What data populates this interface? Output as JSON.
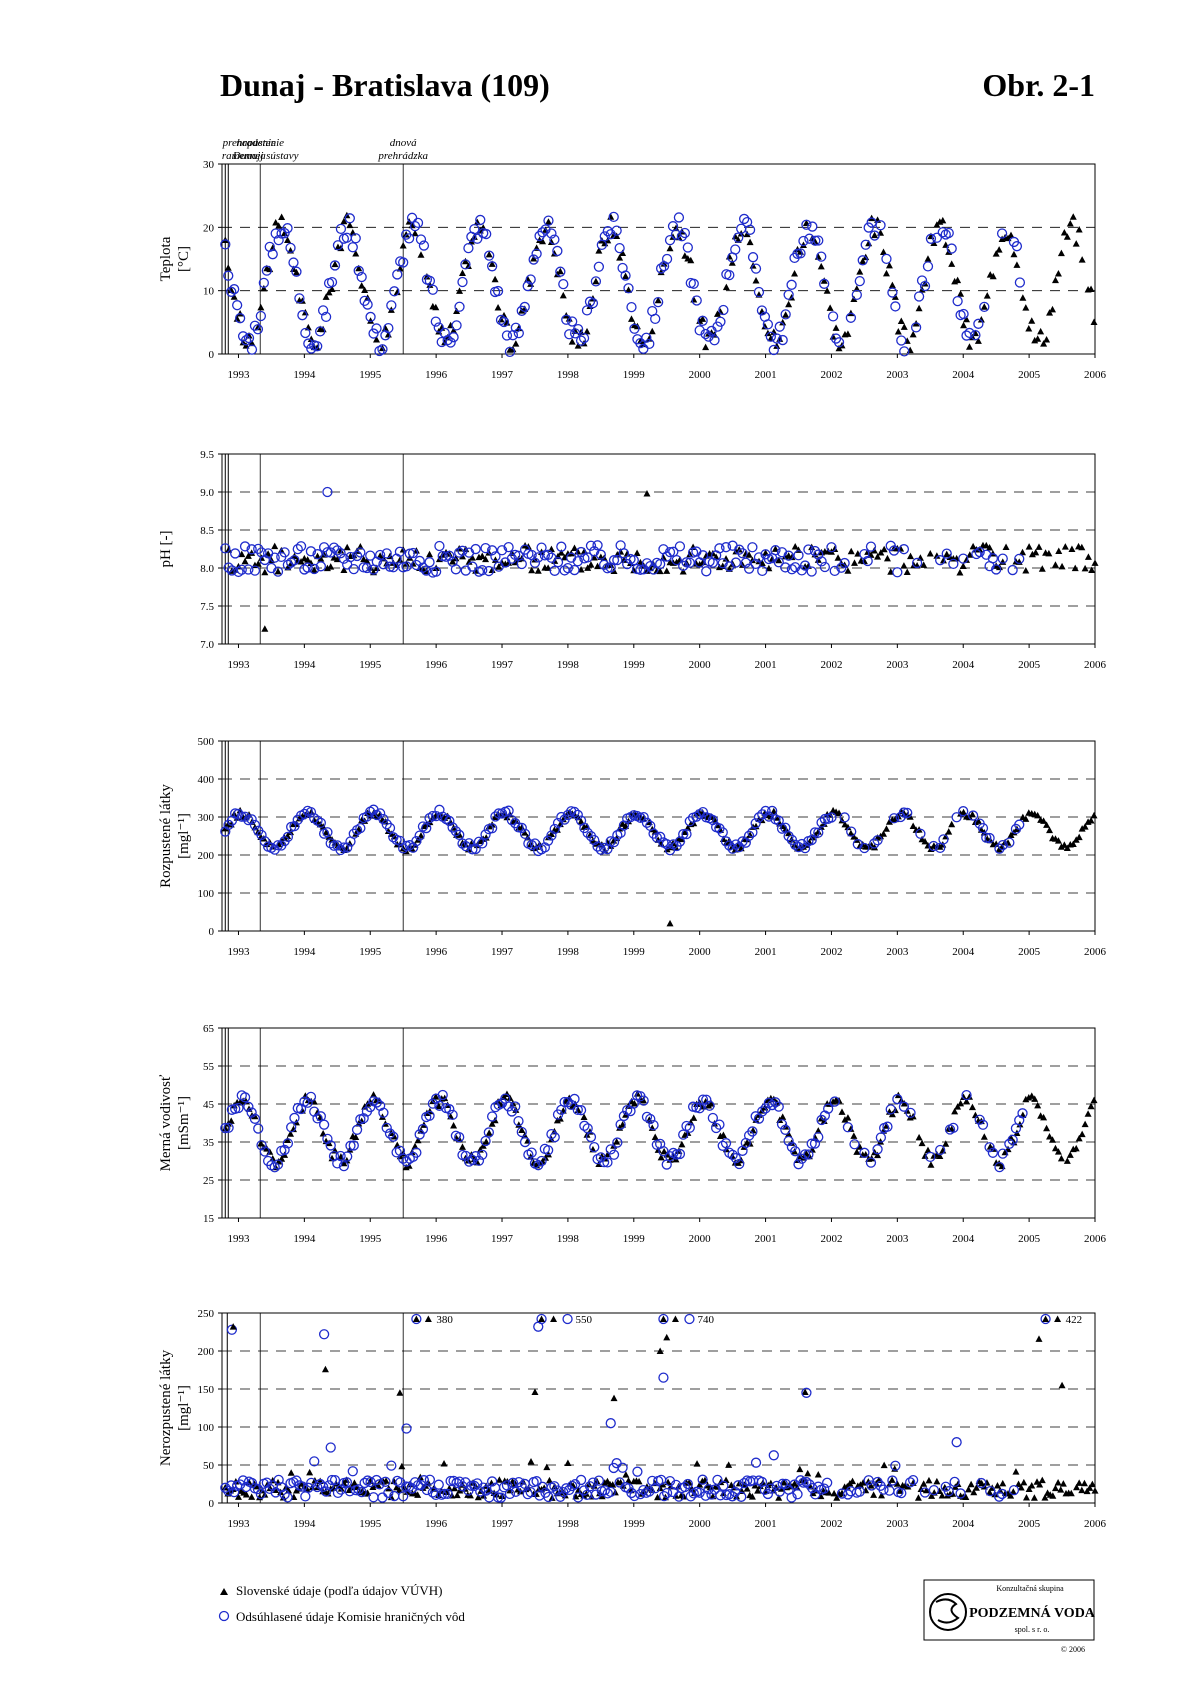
{
  "header": {
    "title": "Dunaj - Bratislava (109)",
    "figure_no": "Obr. 2-1"
  },
  "events": [
    {
      "x": 1992.83,
      "label1": "prehradenie",
      "label2": "Dunaja"
    },
    {
      "x": 1993.33,
      "label1": "napustenie",
      "label2": "ramennej sústavy"
    },
    {
      "x": 1995.5,
      "label1": "dnová",
      "label2": "prehrádzka"
    }
  ],
  "colors": {
    "slovak": "#000000",
    "commission": "#1f2ccc",
    "grid": "#000000"
  },
  "legend": {
    "slovak": "Slovenské údaje (podľa údajov VÚVH)",
    "commission": "Odsúhlasené údaje Komisie hraničných vôd"
  },
  "logo": {
    "line1": "Konzultačná skupina",
    "line2": "PODZEMNÁ VODA",
    "line3": "spol. s r. o.",
    "copyright": "© 2006"
  },
  "chart_data": [
    {
      "type": "scatter",
      "id": "teplota",
      "ylabel_main": "Teplota",
      "ylabel_unit": "[°C]",
      "xlim": [
        1992.75,
        2006
      ],
      "ylim": [
        0,
        30
      ],
      "yticks": [
        0,
        10,
        20,
        30
      ],
      "grid_y": [
        10,
        20
      ],
      "shape": "seasonal",
      "mean": 11,
      "amp": 9,
      "phase": 0.15,
      "xticks": [
        "1993",
        "1994",
        "1995",
        "1996",
        "1997",
        "1998",
        "1999",
        "2000",
        "2001",
        "2002",
        "2003",
        "2004",
        "2005",
        "2006"
      ],
      "series": [
        {
          "role": "slovak",
          "start": 1992.8,
          "end": 2006,
          "step": 0.045
        },
        {
          "role": "commission",
          "start": 1992.8,
          "end": 2004.9,
          "step": 0.045
        }
      ],
      "outliers": []
    },
    {
      "type": "scatter",
      "id": "ph",
      "ylabel_main": "pH [-]",
      "ylabel_unit": "",
      "xlim": [
        1992.75,
        2006
      ],
      "ylim": [
        7.0,
        9.5
      ],
      "yticks": [
        "7.0",
        "7.5",
        "8.0",
        "8.5",
        "9.0",
        "9.5"
      ],
      "grid_y": [
        7.5,
        8.0,
        8.5,
        9.0
      ],
      "shape": "noise",
      "mean": 8.12,
      "amp": 0.18,
      "phase": 0,
      "xticks": [
        "1993",
        "1994",
        "1995",
        "1996",
        "1997",
        "1998",
        "1999",
        "2000",
        "2001",
        "2002",
        "2003",
        "2004",
        "2005",
        "2006"
      ],
      "series": [
        {
          "role": "slovak",
          "start": 1992.85,
          "end": 2006,
          "step": 0.05
        },
        {
          "role": "commission",
          "start": 1992.8,
          "end": 2004.9,
          "step": 0.05
        }
      ],
      "outliers": [
        {
          "role": "commission",
          "x": 1994.35,
          "y": 9.0
        },
        {
          "role": "slovak",
          "x": 1999.2,
          "y": 8.98
        },
        {
          "role": "slovak",
          "x": 1993.4,
          "y": 7.2
        }
      ]
    },
    {
      "type": "scatter",
      "id": "rozpustene",
      "ylabel_main": "Rozpustené látky",
      "ylabel_unit": "[mgl⁻¹]",
      "xlim": [
        1992.75,
        2006
      ],
      "ylim": [
        0,
        500
      ],
      "yticks": [
        0,
        100,
        200,
        300,
        400,
        500
      ],
      "grid_y": [
        100,
        200,
        300,
        400
      ],
      "shape": "seasonal",
      "mean": 265,
      "amp": 45,
      "phase": 0.55,
      "xticks": [
        "1993",
        "1994",
        "1995",
        "1996",
        "1997",
        "1998",
        "1999",
        "2000",
        "2001",
        "2002",
        "2003",
        "2004",
        "2005",
        "2006"
      ],
      "series": [
        {
          "role": "slovak",
          "start": 1992.8,
          "end": 2006,
          "step": 0.045
        },
        {
          "role": "commission",
          "start": 1992.8,
          "end": 2004.9,
          "step": 0.05
        }
      ],
      "outliers": [
        {
          "role": "slovak",
          "x": 1999.55,
          "y": 20
        }
      ]
    },
    {
      "type": "scatter",
      "id": "vodivost",
      "ylabel_main": "Merná vodivosť",
      "ylabel_unit": "[mSm⁻¹]",
      "xlim": [
        1992.75,
        2006
      ],
      "ylim": [
        15,
        65
      ],
      "yticks": [
        15,
        25,
        35,
        45,
        55,
        65
      ],
      "grid_y": [
        25,
        35,
        45,
        55
      ],
      "shape": "seasonal",
      "mean": 38,
      "amp": 8,
      "phase": 0.55,
      "xticks": [
        "1993",
        "1994",
        "1995",
        "1996",
        "1997",
        "1998",
        "1999",
        "2000",
        "2001",
        "2002",
        "2003",
        "2004",
        "2005",
        "2006"
      ],
      "series": [
        {
          "role": "slovak",
          "start": 1992.8,
          "end": 2006,
          "step": 0.045
        },
        {
          "role": "commission",
          "start": 1992.8,
          "end": 2004.9,
          "step": 0.05
        }
      ],
      "outliers": []
    },
    {
      "type": "scatter",
      "id": "nerozpustene",
      "ylabel_main": "Nerozpustené látky",
      "ylabel_unit": "[mgl⁻¹]",
      "xlim": [
        1992.75,
        2006
      ],
      "ylim": [
        0,
        250
      ],
      "yticks": [
        0,
        50,
        100,
        150,
        200,
        250
      ],
      "grid_y": [
        50,
        100,
        150,
        200
      ],
      "shape": "low",
      "mean": 20,
      "amp": 12,
      "phase": 0,
      "xticks": [
        "1993",
        "1994",
        "1995",
        "1996",
        "1997",
        "1998",
        "1999",
        "2000",
        "2001",
        "2002",
        "2003",
        "2004",
        "2005",
        "2006"
      ],
      "series": [
        {
          "role": "slovak",
          "start": 1992.8,
          "end": 2006,
          "step": 0.04
        },
        {
          "role": "commission",
          "start": 1992.8,
          "end": 2004.9,
          "step": 0.045
        }
      ],
      "outliers": [
        {
          "role": "commission",
          "x": 1992.9,
          "y": 228
        },
        {
          "role": "slovak",
          "x": 1992.92,
          "y": 232
        },
        {
          "role": "commission",
          "x": 1994.3,
          "y": 222
        },
        {
          "role": "slovak",
          "x": 1994.32,
          "y": 176
        },
        {
          "role": "commission",
          "x": 1994.4,
          "y": 73
        },
        {
          "role": "slovak",
          "x": 1995.45,
          "y": 145
        },
        {
          "role": "commission",
          "x": 1995.55,
          "y": 98
        },
        {
          "role": "slovak",
          "x": 1997.5,
          "y": 146
        },
        {
          "role": "commission",
          "x": 1997.55,
          "y": 232
        },
        {
          "role": "slovak",
          "x": 1998.7,
          "y": 138
        },
        {
          "role": "commission",
          "x": 1998.65,
          "y": 105
        },
        {
          "role": "slovak",
          "x": 1999.4,
          "y": 200
        },
        {
          "role": "slovak",
          "x": 1999.5,
          "y": 218
        },
        {
          "role": "commission",
          "x": 1999.45,
          "y": 165
        },
        {
          "role": "slovak",
          "x": 2001.6,
          "y": 146
        },
        {
          "role": "commission",
          "x": 2001.62,
          "y": 145
        },
        {
          "role": "commission",
          "x": 2003.9,
          "y": 80
        },
        {
          "role": "slovak",
          "x": 2005.15,
          "y": 216
        },
        {
          "role": "slovak",
          "x": 2005.5,
          "y": 155
        }
      ],
      "offscale": [
        {
          "x": 1995.7,
          "label": "380",
          "roles": [
            "both",
            "slovak"
          ]
        },
        {
          "x": 1997.6,
          "label": "550",
          "roles": [
            "both",
            "slovak",
            "commission"
          ]
        },
        {
          "x": 1999.45,
          "label": "740",
          "roles": [
            "both",
            "slovak",
            "commission"
          ]
        },
        {
          "x": 2005.25,
          "label": "422",
          "roles": [
            "both",
            "slovak"
          ]
        }
      ]
    }
  ]
}
